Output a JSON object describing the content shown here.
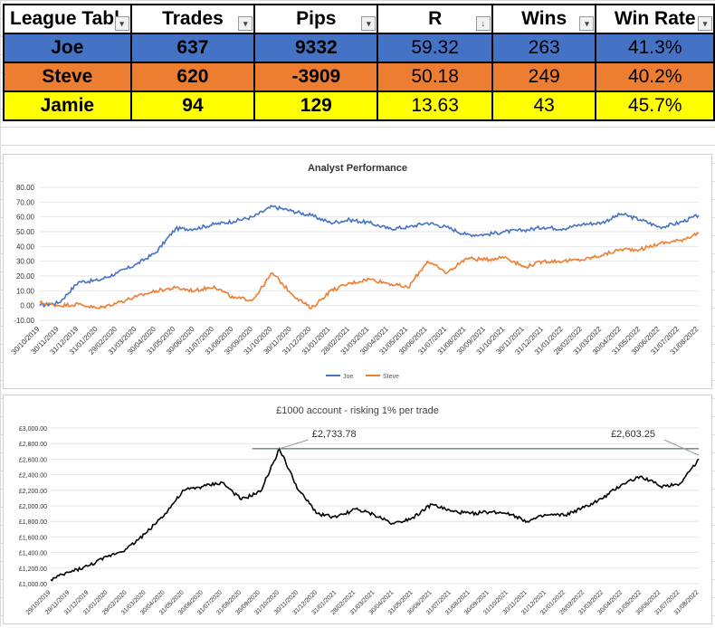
{
  "table": {
    "headers": [
      "League Tabl",
      "Trades",
      "Pips",
      "R",
      "Wins",
      "Win Rate"
    ],
    "rows": [
      {
        "name": "Joe",
        "trades": "637",
        "pips": "9332",
        "r": "59.32",
        "wins": "263",
        "win_rate": "41.3%",
        "color": "#4472c4"
      },
      {
        "name": "Steve",
        "trades": "620",
        "pips": "-3909",
        "r": "50.18",
        "wins": "249",
        "win_rate": "40.2%",
        "color": "#ed7d31"
      },
      {
        "name": "Jamie",
        "trades": "94",
        "pips": "129",
        "r": "13.63",
        "wins": "43",
        "win_rate": "45.7%",
        "color": "#ffff00"
      }
    ]
  },
  "chart_data": [
    {
      "type": "line",
      "title": "Analyst Performance",
      "ylim": [
        -10,
        80
      ],
      "yticks": [
        "-10.00",
        "0.00",
        "10.00",
        "20.00",
        "30.00",
        "40.00",
        "50.00",
        "60.00",
        "70.00",
        "80.00"
      ],
      "xticks": [
        "30/10/2019",
        "30/11/2019",
        "31/12/2019",
        "31/01/2020",
        "29/02/2020",
        "31/03/2020",
        "30/04/2020",
        "31/05/2020",
        "30/06/2020",
        "31/07/2020",
        "31/08/2020",
        "30/09/2020",
        "31/10/2020",
        "30/11/2020",
        "31/12/2020",
        "31/01/2021",
        "28/02/2021",
        "31/03/2021",
        "30/04/2021",
        "31/05/2021",
        "30/06/2021",
        "31/07/2021",
        "31/08/2021",
        "30/09/2021",
        "31/10/2021",
        "30/11/2021",
        "31/12/2021",
        "31/01/2022",
        "28/02/2022",
        "31/03/2022",
        "30/04/2022",
        "31/05/2022",
        "30/06/2022",
        "31/07/2022",
        "31/08/2022"
      ],
      "legend_position": "bottom",
      "series": [
        {
          "name": "Joe",
          "color": "#4472c4",
          "values": [
            0,
            2,
            16,
            17,
            22,
            28,
            36,
            52,
            52,
            55,
            57,
            60,
            67,
            64,
            61,
            56,
            58,
            56,
            52,
            53,
            56,
            53,
            48,
            48,
            50,
            51,
            53,
            52,
            55,
            56,
            62,
            58,
            53,
            56,
            61
          ]
        },
        {
          "name": "Steve",
          "color": "#ed7d31",
          "values": [
            2,
            0,
            1,
            -2,
            2,
            6,
            10,
            12,
            10,
            13,
            5,
            4,
            22,
            8,
            -2,
            10,
            15,
            18,
            15,
            12,
            30,
            22,
            32,
            31,
            33,
            26,
            30,
            30,
            31,
            34,
            38,
            38,
            42,
            44,
            49
          ]
        }
      ]
    },
    {
      "type": "line",
      "title": "£1000 account - risking 1% per trade",
      "ylim": [
        1000,
        3000
      ],
      "yticks": [
        "£1,000.00",
        "£1,200.00",
        "£1,400.00",
        "£1,600.00",
        "£1,800.00",
        "£2,000.00",
        "£2,200.00",
        "£2,400.00",
        "£2,600.00",
        "£2,800.00",
        "£3,000.00"
      ],
      "xticks": [
        "29/10/2019",
        "29/11/2019",
        "31/12/2019",
        "31/01/2020",
        "29/02/2020",
        "31/03/2020",
        "30/04/2020",
        "31/05/2020",
        "30/06/2020",
        "31/07/2020",
        "31/08/2020",
        "30/09/2020",
        "31/10/2020",
        "30/11/2020",
        "31/12/2020",
        "31/01/2021",
        "28/02/2021",
        "31/03/2021",
        "30/04/2021",
        "31/05/2021",
        "30/06/2021",
        "31/07/2021",
        "31/08/2021",
        "30/09/2021",
        "31/10/2021",
        "30/11/2021",
        "31/12/2021",
        "31/01/2022",
        "28/02/2022",
        "31/03/2022",
        "30/04/2022",
        "31/05/2022",
        "30/06/2022",
        "31/07/2022",
        "31/08/2022"
      ],
      "series": [
        {
          "name": "",
          "color": "#000000",
          "values": [
            1050,
            1150,
            1230,
            1350,
            1450,
            1650,
            1900,
            2200,
            2250,
            2300,
            2080,
            2180,
            2733.78,
            2200,
            1900,
            1850,
            1960,
            1880,
            1770,
            1850,
            2020,
            1930,
            1900,
            1920,
            1910,
            1800,
            1880,
            1880,
            1980,
            2100,
            2280,
            2380,
            2250,
            2280,
            2603.25
          ]
        }
      ],
      "annotations": [
        {
          "text": "£2,733.78",
          "value": 2733.78
        },
        {
          "text": "£2,603.25",
          "value": 2603.25
        }
      ]
    }
  ]
}
